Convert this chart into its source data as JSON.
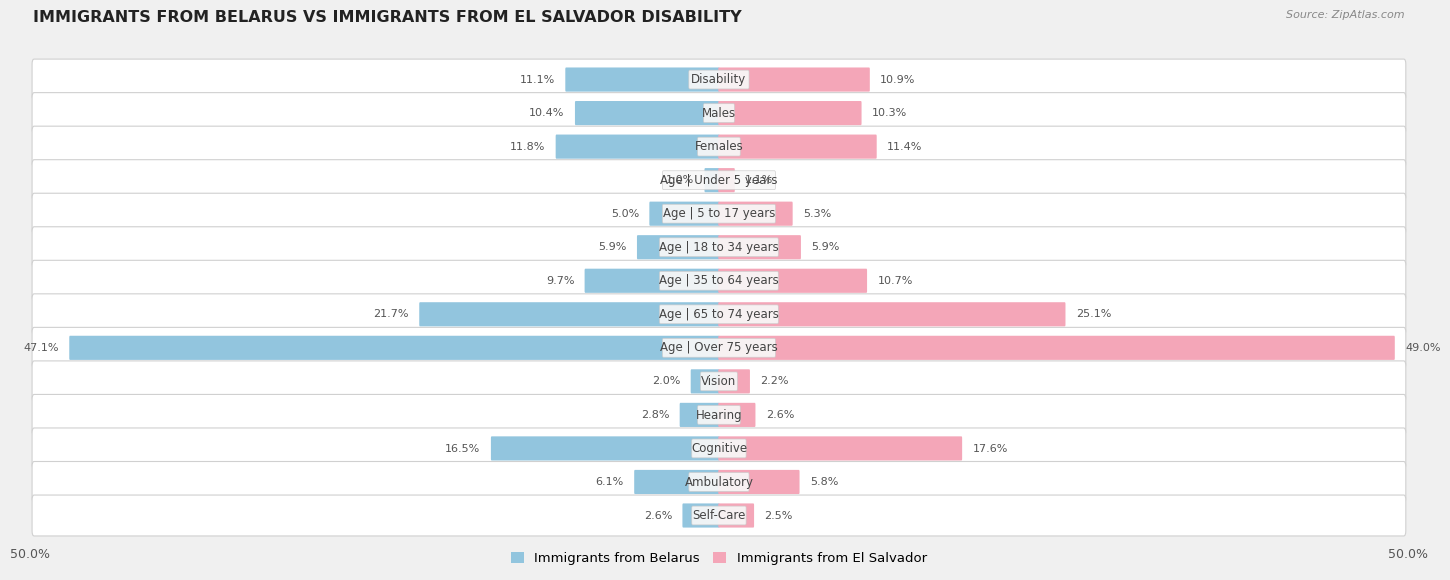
{
  "title": "IMMIGRANTS FROM BELARUS VS IMMIGRANTS FROM EL SALVADOR DISABILITY",
  "source": "Source: ZipAtlas.com",
  "categories": [
    "Disability",
    "Males",
    "Females",
    "Age | Under 5 years",
    "Age | 5 to 17 years",
    "Age | 18 to 34 years",
    "Age | 35 to 64 years",
    "Age | 65 to 74 years",
    "Age | Over 75 years",
    "Vision",
    "Hearing",
    "Cognitive",
    "Ambulatory",
    "Self-Care"
  ],
  "belarus_values": [
    11.1,
    10.4,
    11.8,
    1.0,
    5.0,
    5.9,
    9.7,
    21.7,
    47.1,
    2.0,
    2.8,
    16.5,
    6.1,
    2.6
  ],
  "salvador_values": [
    10.9,
    10.3,
    11.4,
    1.1,
    5.3,
    5.9,
    10.7,
    25.1,
    49.0,
    2.2,
    2.6,
    17.6,
    5.8,
    2.5
  ],
  "belarus_color": "#92C5DE",
  "salvador_color": "#F4A6B8",
  "axis_max": 50.0,
  "background_color": "#f0f0f0",
  "bar_background": "#ffffff",
  "row_border_color": "#d0d0d0",
  "title_fontsize": 11.5,
  "value_fontsize": 8.0,
  "label_fontsize": 8.5,
  "legend_label_belarus": "Immigrants from Belarus",
  "legend_label_salvador": "Immigrants from El Salvador"
}
